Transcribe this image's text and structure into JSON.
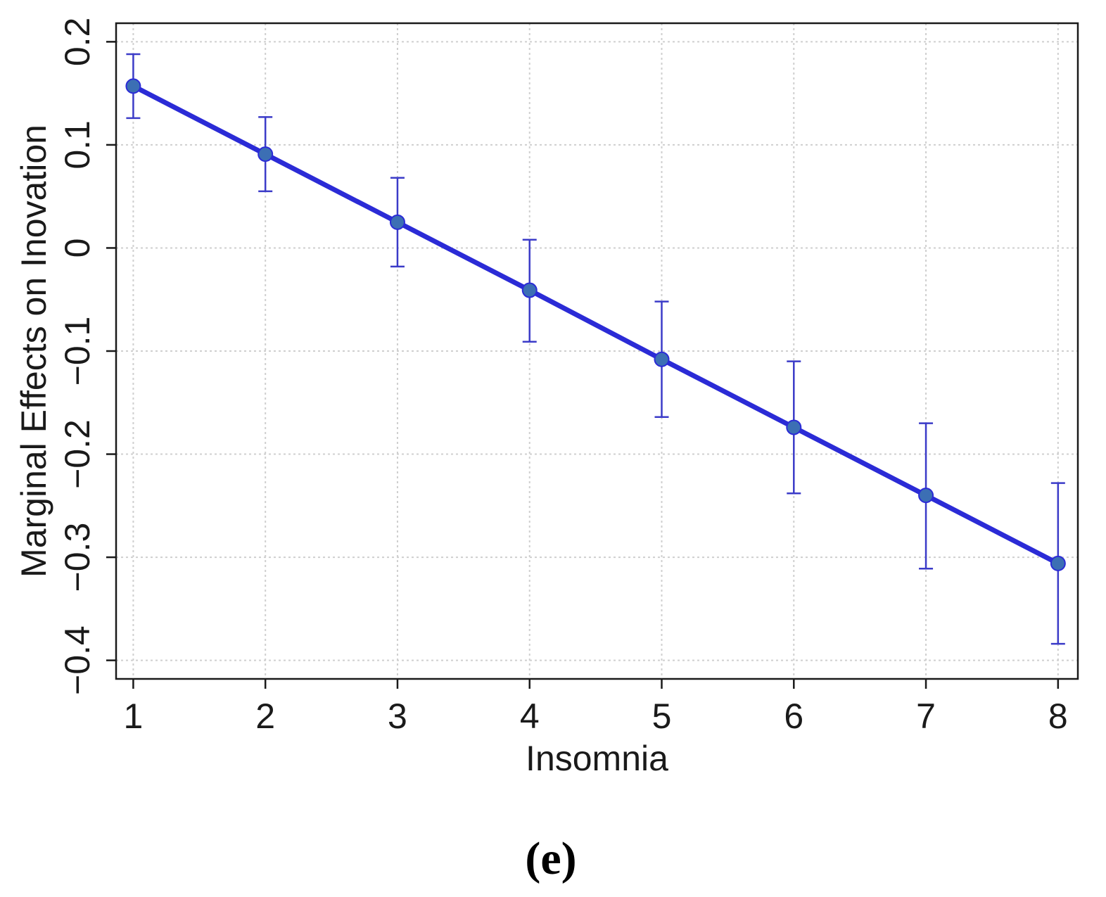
{
  "colors": {
    "line": "#2b2bd6",
    "marker": "#3c6fb4",
    "errorbar": "#3b3bc8",
    "grid": "#cfcfcf",
    "frame": "#1a1a1a"
  },
  "chart_data": {
    "type": "line",
    "xlabel": "Insomnia",
    "ylabel": "Marginal Effects on Inovation",
    "panel_label": "(e)",
    "xlim": [
      0.87,
      8.15
    ],
    "ylim": [
      -0.418,
      0.218
    ],
    "x_ticks": [
      1,
      2,
      3,
      4,
      5,
      6,
      7,
      8
    ],
    "x_tick_labels": [
      "1",
      "2",
      "3",
      "4",
      "5",
      "6",
      "7",
      "8"
    ],
    "y_ticks": [
      -0.4,
      -0.3,
      -0.2,
      -0.1,
      0,
      0.1,
      0.2
    ],
    "y_tick_labels": [
      "−0.4",
      "−0.3",
      "−0.2",
      "−0.1",
      "0",
      "0.1",
      "0.2"
    ],
    "grid": true,
    "series": [
      {
        "x": [
          1,
          2,
          3,
          4,
          5,
          6,
          7,
          8
        ],
        "y": [
          0.157,
          0.091,
          0.025,
          -0.041,
          -0.108,
          -0.174,
          -0.24,
          -0.306
        ],
        "lower": [
          0.126,
          0.055,
          -0.018,
          -0.091,
          -0.164,
          -0.238,
          -0.311,
          -0.384
        ],
        "upper": [
          0.188,
          0.127,
          0.068,
          0.008,
          -0.052,
          -0.11,
          -0.17,
          -0.228
        ]
      }
    ]
  }
}
